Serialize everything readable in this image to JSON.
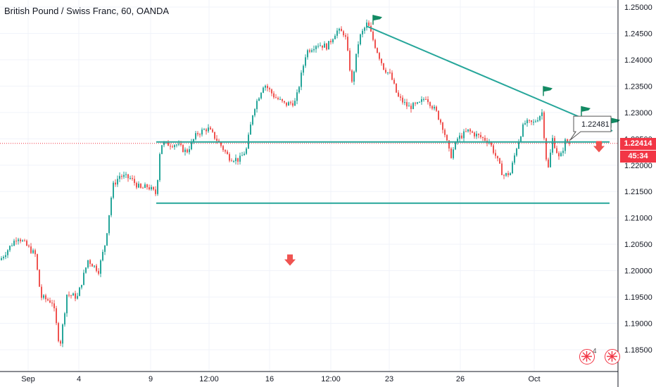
{
  "header": {
    "title": "British Pound / Swiss Franc, 60, OANDA"
  },
  "chart_data": {
    "type": "candlestick",
    "title": "British Pound / Swiss Franc, 60, OANDA",
    "xlabel": "",
    "ylabel": "",
    "x_ticks": [
      "Sep",
      "4",
      "9",
      "12:00",
      "16",
      "12:00",
      "23",
      "26",
      "Oct"
    ],
    "y_ticks": [
      "1.25000",
      "1.24500",
      "1.24000",
      "1.23500",
      "1.23000",
      "1.22500",
      "1.22000",
      "1.21500",
      "1.21000",
      "1.20500",
      "1.20000",
      "1.19500",
      "1.19000",
      "1.18500"
    ],
    "ylim": [
      1.183,
      1.2515
    ],
    "series": [
      {
        "path": [
          [
            0,
            1.202
          ],
          [
            25,
            1.2065
          ],
          [
            50,
            1.203
          ],
          [
            58,
            1.195
          ],
          [
            75,
            1.194
          ],
          [
            85,
            1.1855
          ],
          [
            95,
            1.1955
          ],
          [
            110,
            1.195
          ],
          [
            125,
            1.202
          ],
          [
            140,
            1.2
          ],
          [
            150,
            1.2055
          ],
          [
            160,
            1.216
          ],
          [
            170,
            1.218
          ],
          [
            185,
            1.2175
          ],
          [
            200,
            1.2155
          ],
          [
            210,
            1.216
          ],
          [
            222,
            1.2145
          ],
          [
            228,
            1.224
          ],
          [
            250,
            1.224
          ],
          [
            265,
            1.2225
          ],
          [
            280,
            1.226
          ],
          [
            295,
            1.227
          ],
          [
            310,
            1.2245
          ],
          [
            325,
            1.2215
          ],
          [
            340,
            1.221
          ],
          [
            350,
            1.223
          ],
          [
            360,
            1.2305
          ],
          [
            375,
            1.2355
          ],
          [
            390,
            1.233
          ],
          [
            405,
            1.2315
          ],
          [
            420,
            1.232
          ],
          [
            435,
            1.2415
          ],
          [
            450,
            1.243
          ],
          [
            465,
            1.2425
          ],
          [
            478,
            1.2455
          ],
          [
            490,
            1.245
          ],
          [
            500,
            1.2355
          ],
          [
            510,
            1.244
          ],
          [
            522,
            1.247
          ],
          [
            532,
            1.243
          ],
          [
            545,
            1.2385
          ],
          [
            555,
            1.237
          ],
          [
            565,
            1.233
          ],
          [
            580,
            1.231
          ],
          [
            595,
            1.2315
          ],
          [
            605,
            1.233
          ],
          [
            620,
            1.23
          ],
          [
            630,
            1.227
          ],
          [
            640,
            1.2215
          ],
          [
            650,
            1.225
          ],
          [
            665,
            1.2265
          ],
          [
            680,
            1.2255
          ],
          [
            695,
            1.2245
          ],
          [
            705,
            1.2215
          ],
          [
            715,
            1.218
          ],
          [
            725,
            1.2185
          ],
          [
            735,
            1.224
          ],
          [
            745,
            1.228
          ],
          [
            758,
            1.228
          ],
          [
            770,
            1.23
          ],
          [
            778,
            1.2185
          ],
          [
            785,
            1.225
          ],
          [
            795,
            1.221
          ],
          [
            803,
            1.2245
          ],
          [
            810,
            1.2241
          ]
        ]
      }
    ],
    "current_price": "1.22414",
    "countdown": "45:34",
    "annotations": {
      "callout": "1.22481",
      "support_levels": [
        1.2244,
        1.2128
      ],
      "trendline": [
        [
          522,
          1.2463
        ],
        [
          870,
          1.2265
        ]
      ],
      "sell_arrows": [
        [
          412,
          1.202
        ],
        [
          851,
          1.2235
        ]
      ]
    },
    "indicator_count": "4",
    "colors": {
      "up": "#26a69a",
      "down": "#ef5350",
      "line": "#26a69a",
      "flag": "#138a63",
      "price": "#f23645",
      "grid": "#f0f3fa"
    }
  }
}
